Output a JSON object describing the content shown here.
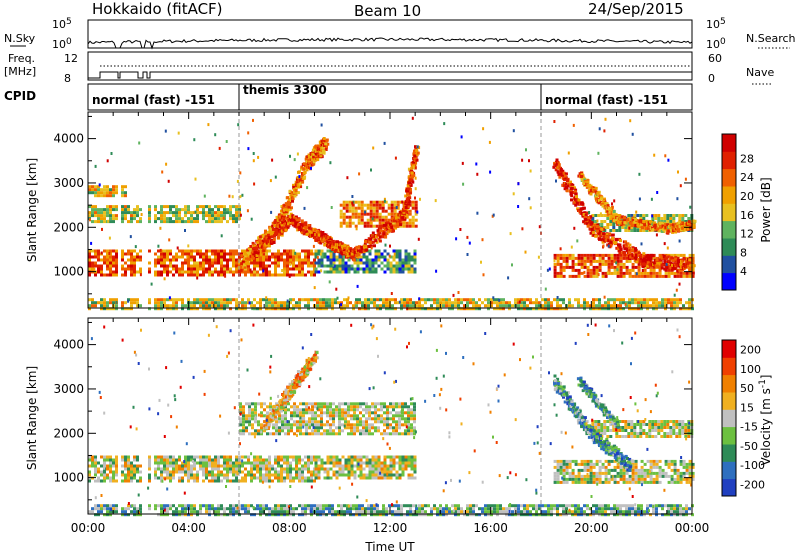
{
  "header": {
    "radar": "Hokkaido (fitACF)",
    "beam": "Beam 10",
    "date": "24/Sep/2015"
  },
  "top_panels": {
    "nsky_label": "N.Sky",
    "nsky_ticks": [
      "10^5",
      "10^0"
    ],
    "nsearch_label": "N.Search",
    "nsearch_ticks": [
      "10^5",
      "10^0"
    ],
    "freq_label": "Freq.",
    "freq_unit": "[MHz]",
    "freq_ticks": [
      "12",
      "8"
    ],
    "nave_label": "Nave",
    "nave_ticks": [
      "60",
      "0"
    ],
    "cpid_label": "CPID",
    "cpid_segments": [
      {
        "label": "normal (fast) -151",
        "start_h": 0,
        "end_h": 6
      },
      {
        "label": "themis 3300",
        "start_h": 6,
        "end_h": 18
      },
      {
        "label": "normal (fast) -151",
        "start_h": 18,
        "end_h": 24
      }
    ]
  },
  "chart_data": [
    {
      "type": "heatmap",
      "name": "power",
      "ylabel": "Slant Range [km]",
      "xlabel": "",
      "xlim_hours": [
        0,
        24
      ],
      "ylim": [
        180,
        4600
      ],
      "yticks": [
        "1000",
        "2000",
        "3000",
        "4000"
      ],
      "colorbar": {
        "label": "Power [dB]",
        "ticks": [
          "4",
          "8",
          "12",
          "16",
          "20",
          "24",
          "28"
        ],
        "colors": [
          "#0000ff",
          "#2050a0",
          "#2e8b57",
          "#5fb35f",
          "#e8c020",
          "#f0a000",
          "#f06000",
          "#e02000",
          "#d00000"
        ]
      },
      "bands": [
        {
          "t0": 0,
          "t1": 24,
          "r0": 180,
          "r1": 400,
          "level": 0.5
        },
        {
          "t0": 0,
          "t1": 9,
          "r0": 900,
          "r1": 1500,
          "level": 0.75
        },
        {
          "t0": 9,
          "t1": 13,
          "r0": 1000,
          "r1": 1500,
          "level": 0.3
        },
        {
          "t0": 0,
          "t1": 6,
          "r0": 2100,
          "r1": 2500,
          "level": 0.45
        },
        {
          "t0": 0,
          "t1": 1.5,
          "r0": 2700,
          "r1": 2950,
          "level": 0.5
        },
        {
          "t0": 10,
          "t1": 13,
          "r0": 2000,
          "r1": 2600,
          "level": 0.7
        },
        {
          "t0": 18.5,
          "t1": 24,
          "r0": 900,
          "r1": 1400,
          "level": 0.75
        },
        {
          "t0": 20,
          "t1": 24,
          "r0": 1900,
          "r1": 2300,
          "level": 0.4
        }
      ],
      "arcs": [
        {
          "points": [
            [
              6,
              1200
            ],
            [
              7.5,
              2100
            ],
            [
              8.7,
              3500
            ],
            [
              9.4,
              3900
            ]
          ],
          "width": 320,
          "level": 0.7
        },
        {
          "points": [
            [
              6.5,
              1400
            ],
            [
              8,
              2200
            ],
            [
              9.5,
              1700
            ],
            [
              10.5,
              1400
            ],
            [
              12.5,
              2300
            ],
            [
              13,
              3800
            ]
          ],
          "width": 260,
          "level": 0.8
        },
        {
          "points": [
            [
              18.5,
              3500
            ],
            [
              20,
              2000
            ],
            [
              22,
              1300
            ],
            [
              24,
              1150
            ]
          ],
          "width": 300,
          "level": 0.85
        },
        {
          "points": [
            [
              19.5,
              3200
            ],
            [
              21,
              2200
            ],
            [
              23,
              2000
            ],
            [
              24,
              2100
            ]
          ],
          "width": 200,
          "level": 0.65
        }
      ],
      "scatter_ranges": [
        [
          0,
          24,
          180,
          4500
        ]
      ]
    },
    {
      "type": "heatmap",
      "name": "velocity",
      "ylabel": "Slant Range [km]",
      "xlabel": "Time UT",
      "xlim_hours": [
        0,
        24
      ],
      "ylim": [
        180,
        4600
      ],
      "xticks": [
        "00:00",
        "04:00",
        "08:00",
        "12:00",
        "16:00",
        "20:00",
        "00:00"
      ],
      "yticks": [
        "1000",
        "2000",
        "3000",
        "4000"
      ],
      "colorbar": {
        "label": "Velocity [m s-1]",
        "ticks": [
          "200",
          "100",
          "50",
          "15",
          "-15",
          "-50",
          "-100",
          "-200"
        ],
        "colors": [
          "#2040c0",
          "#2e6fbf",
          "#2e8b57",
          "#6cc040",
          "#c0c0c0",
          "#f0b020",
          "#f08000",
          "#f04000",
          "#e00000"
        ]
      },
      "bands": [
        {
          "t0": 0,
          "t1": 24,
          "r0": 180,
          "r1": 400,
          "level": 0.35
        },
        {
          "t0": 0,
          "t1": 9,
          "r0": 900,
          "r1": 1500,
          "level": 0.5
        },
        {
          "t0": 9,
          "t1": 13,
          "r0": 1000,
          "r1": 1500,
          "level": 0.5
        },
        {
          "t0": 6,
          "t1": 13,
          "r0": 2000,
          "r1": 2700,
          "level": 0.5
        },
        {
          "t0": 18.5,
          "t1": 24,
          "r0": 900,
          "r1": 1400,
          "level": 0.5
        },
        {
          "t0": 20,
          "t1": 24,
          "r0": 1900,
          "r1": 2300,
          "level": 0.5
        }
      ],
      "arcs": [
        {
          "points": [
            [
              7,
              2200
            ],
            [
              8,
              3000
            ],
            [
              9,
              3800
            ]
          ],
          "width": 260,
          "level": 0.62
        },
        {
          "points": [
            [
              18.5,
              3200
            ],
            [
              20,
              2000
            ],
            [
              21.5,
              1300
            ]
          ],
          "width": 260,
          "level": 0.3
        },
        {
          "points": [
            [
              19.5,
              3200
            ],
            [
              21,
              2200
            ]
          ],
          "width": 180,
          "level": 0.3
        }
      ],
      "scatter_ranges": [
        [
          0,
          24,
          180,
          4500
        ]
      ]
    }
  ]
}
